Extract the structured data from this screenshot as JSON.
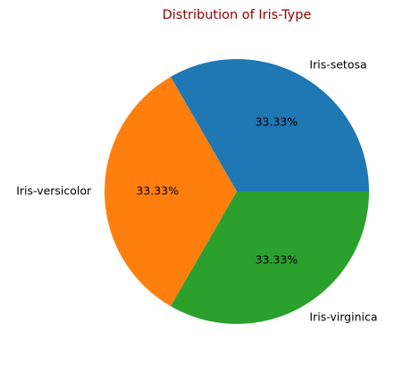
{
  "chart_data": {
    "type": "pie",
    "title": "Distribution of Iris-Type",
    "title_color": "#8b0000",
    "categories": [
      "Iris-setosa",
      "Iris-versicolor",
      "Iris-virginica"
    ],
    "values": [
      33.33,
      33.33,
      33.33
    ],
    "value_labels": [
      "33.33%",
      "33.33%",
      "33.33%"
    ],
    "colors": [
      "#1f77b4",
      "#ff7f0e",
      "#2ca02c"
    ],
    "start_angle_deg": 0,
    "direction": "counterclockwise",
    "legend": "none"
  }
}
